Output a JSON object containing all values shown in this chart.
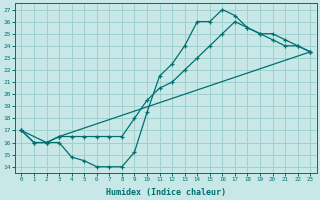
{
  "xlabel": "Humidex (Indice chaleur)",
  "ylabel": "",
  "bg_color": "#c8e8e8",
  "line_color": "#007070",
  "grid_color": "#a0d0d0",
  "xlim": [
    -0.5,
    23.5
  ],
  "ylim": [
    13.5,
    27.5
  ],
  "xticks": [
    0,
    1,
    2,
    3,
    4,
    5,
    6,
    7,
    8,
    9,
    10,
    11,
    12,
    13,
    14,
    15,
    16,
    17,
    18,
    19,
    20,
    21,
    22,
    23
  ],
  "yticks": [
    14,
    15,
    16,
    17,
    18,
    19,
    20,
    21,
    22,
    23,
    24,
    25,
    26,
    27
  ],
  "curve1_x": [
    0,
    1,
    2,
    3,
    4,
    5,
    6,
    7,
    8,
    9,
    10,
    11,
    12,
    13,
    14,
    15,
    16,
    17,
    18,
    19,
    20,
    21,
    22,
    23
  ],
  "curve1_y": [
    17,
    16,
    16,
    16,
    14.8,
    14.5,
    14,
    14,
    14,
    15.2,
    18.5,
    21.5,
    22.5,
    24,
    26,
    26,
    27,
    26.5,
    25.5,
    25,
    25,
    24.5,
    24,
    23.5
  ],
  "curve2_x": [
    0,
    1,
    2,
    3,
    4,
    5,
    6,
    7,
    8,
    9,
    10,
    11,
    12,
    13,
    14,
    15,
    16,
    17,
    18,
    19,
    20,
    21,
    22,
    23
  ],
  "curve2_y": [
    17,
    16,
    16,
    16.5,
    16.5,
    16.5,
    16.5,
    16.5,
    16.5,
    18,
    19.5,
    20.5,
    21,
    22,
    23,
    24,
    25,
    26,
    25.5,
    25,
    24.5,
    24,
    24,
    23.5
  ],
  "curve3_x": [
    0,
    2,
    3,
    23
  ],
  "curve3_y": [
    17,
    16,
    16.5,
    23.5
  ]
}
